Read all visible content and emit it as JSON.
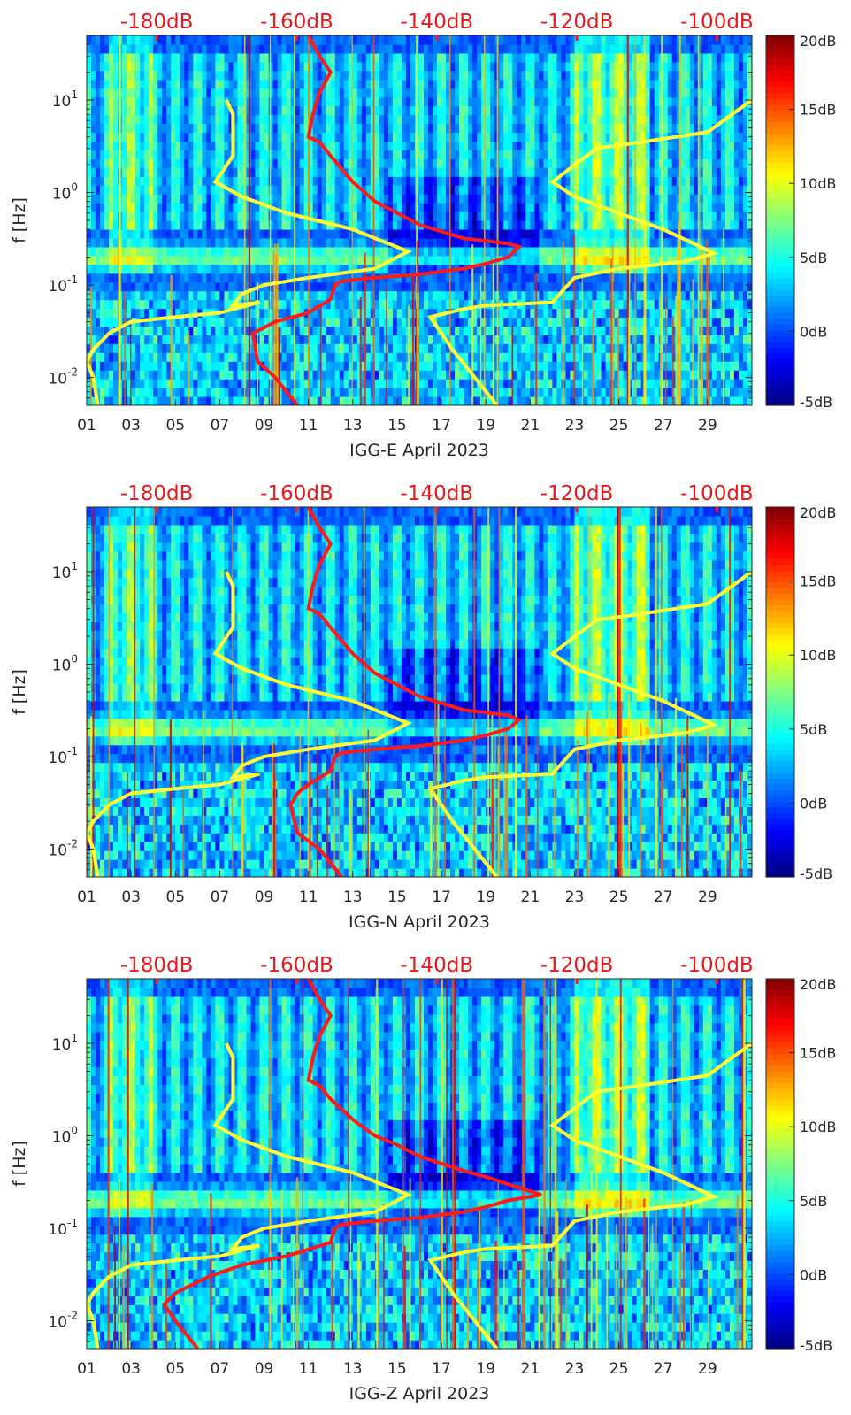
{
  "panels": [
    {
      "xlabel": "IGG-E April 2023",
      "ylabel": "f [Hz]",
      "red_curve": [
        [
          11,
          50
        ],
        [
          11.5,
          30
        ],
        [
          12,
          20
        ],
        [
          11.5,
          12
        ],
        [
          11.2,
          7
        ],
        [
          11,
          4
        ],
        [
          11.5,
          3.5
        ],
        [
          12,
          2.5
        ],
        [
          13,
          1.3
        ],
        [
          14,
          0.8
        ],
        [
          15,
          0.6
        ],
        [
          16,
          0.45
        ],
        [
          17,
          0.38
        ],
        [
          18,
          0.32
        ],
        [
          19,
          0.3
        ],
        [
          20,
          0.28
        ],
        [
          20.5,
          0.26
        ],
        [
          20,
          0.2
        ],
        [
          19,
          0.17
        ],
        [
          18,
          0.15
        ],
        [
          16,
          0.13
        ],
        [
          14,
          0.12
        ],
        [
          12.5,
          0.11
        ],
        [
          12.2,
          0.1
        ],
        [
          12,
          0.07
        ],
        [
          11,
          0.05
        ],
        [
          9.5,
          0.04
        ],
        [
          8.5,
          0.03
        ],
        [
          8.7,
          0.015
        ],
        [
          9.5,
          0.01
        ],
        [
          10.5,
          0.005
        ]
      ]
    },
    {
      "xlabel": "IGG-N April 2023",
      "ylabel": "f [Hz]",
      "red_curve": [
        [
          11,
          50
        ],
        [
          11.5,
          30
        ],
        [
          12,
          20
        ],
        [
          11.5,
          12
        ],
        [
          11.2,
          7
        ],
        [
          11,
          4
        ],
        [
          11.5,
          3.5
        ],
        [
          12,
          2.5
        ],
        [
          13,
          1.3
        ],
        [
          14,
          0.8
        ],
        [
          15,
          0.6
        ],
        [
          16,
          0.45
        ],
        [
          17,
          0.38
        ],
        [
          18,
          0.32
        ],
        [
          19,
          0.3
        ],
        [
          20,
          0.28
        ],
        [
          20.5,
          0.25
        ],
        [
          20,
          0.2
        ],
        [
          19,
          0.17
        ],
        [
          18,
          0.15
        ],
        [
          16,
          0.13
        ],
        [
          14,
          0.12
        ],
        [
          12.5,
          0.11
        ],
        [
          12.2,
          0.1
        ],
        [
          12,
          0.07
        ],
        [
          11,
          0.05
        ],
        [
          10.5,
          0.04
        ],
        [
          10.2,
          0.03
        ],
        [
          10.5,
          0.015
        ],
        [
          11.5,
          0.01
        ],
        [
          12.5,
          0.005
        ]
      ]
    },
    {
      "xlabel": "IGG-Z April 2023",
      "ylabel": "f [Hz]",
      "red_curve": [
        [
          11,
          50
        ],
        [
          11.5,
          30
        ],
        [
          12,
          20
        ],
        [
          11.5,
          12
        ],
        [
          11.2,
          7
        ],
        [
          11,
          4
        ],
        [
          11.5,
          3.5
        ],
        [
          12,
          2.5
        ],
        [
          13,
          1.5
        ],
        [
          14,
          1.0
        ],
        [
          15,
          0.8
        ],
        [
          16,
          0.6
        ],
        [
          17,
          0.5
        ],
        [
          18,
          0.42
        ],
        [
          19,
          0.36
        ],
        [
          20,
          0.3
        ],
        [
          21.5,
          0.23
        ],
        [
          20,
          0.2
        ],
        [
          19,
          0.17
        ],
        [
          18,
          0.15
        ],
        [
          16,
          0.13
        ],
        [
          14,
          0.12
        ],
        [
          12.5,
          0.11
        ],
        [
          12.2,
          0.1
        ],
        [
          12,
          0.07
        ],
        [
          10,
          0.05
        ],
        [
          8,
          0.04
        ],
        [
          6.5,
          0.03
        ],
        [
          5,
          0.02
        ],
        [
          4.5,
          0.015
        ],
        [
          5,
          0.01
        ],
        [
          6,
          0.005
        ]
      ]
    }
  ],
  "chart_data": {
    "type": "heatmap",
    "x_ticks": [
      "01",
      "03",
      "05",
      "07",
      "09",
      "11",
      "13",
      "15",
      "17",
      "19",
      "21",
      "23",
      "25",
      "27",
      "29"
    ],
    "x_range": [
      1,
      31
    ],
    "y_scale": "log",
    "y_ticks": [
      "10-2",
      "10-1",
      "100",
      "101"
    ],
    "y_range": [
      0.005,
      50
    ],
    "top_axis_ticks": [
      "-180dB",
      "-160dB",
      "-140dB",
      "-120dB",
      "-100dB"
    ],
    "top_axis_range": [
      -190,
      -95
    ],
    "colorbar_ticks": [
      "20dB",
      "15dB",
      "10dB",
      "5dB",
      "0dB",
      "-5dB"
    ],
    "colorbar_range": [
      -5,
      20
    ],
    "colormap": "jet",
    "red_line_color": "#ff1a1a",
    "yellow_line_color": "#ffff33",
    "yellow_curve_left": [
      [
        7.3,
        10
      ],
      [
        7.6,
        7
      ],
      [
        7.6,
        2.5
      ],
      [
        6.8,
        1.3
      ],
      [
        8,
        0.9
      ],
      [
        10,
        0.6
      ],
      [
        13,
        0.4
      ],
      [
        15.5,
        0.23
      ],
      [
        14,
        0.15
      ],
      [
        11,
        0.12
      ],
      [
        9,
        0.1
      ],
      [
        8,
        0.08
      ],
      [
        7.6,
        0.06
      ],
      [
        8.8,
        0.065
      ],
      [
        7,
        0.05
      ],
      [
        5,
        0.045
      ],
      [
        3,
        0.04
      ],
      [
        2,
        0.03
      ],
      [
        1.3,
        0.02
      ],
      [
        1,
        0.015
      ],
      [
        1.3,
        0.01
      ],
      [
        1.5,
        0.005
      ]
    ],
    "yellow_curve_right": [
      [
        31,
        10
      ],
      [
        29,
        4.5
      ],
      [
        26,
        3.5
      ],
      [
        24,
        3
      ],
      [
        22,
        1.3
      ],
      [
        23,
        0.9
      ],
      [
        25,
        0.6
      ],
      [
        27,
        0.4
      ],
      [
        29.3,
        0.22
      ],
      [
        28,
        0.18
      ],
      [
        25,
        0.15
      ],
      [
        23,
        0.12
      ],
      [
        22,
        0.065
      ],
      [
        19,
        0.06
      ],
      [
        18,
        0.055
      ],
      [
        16.5,
        0.045
      ],
      [
        17.5,
        0.02
      ],
      [
        18.5,
        0.01
      ],
      [
        19.5,
        0.005
      ]
    ]
  }
}
